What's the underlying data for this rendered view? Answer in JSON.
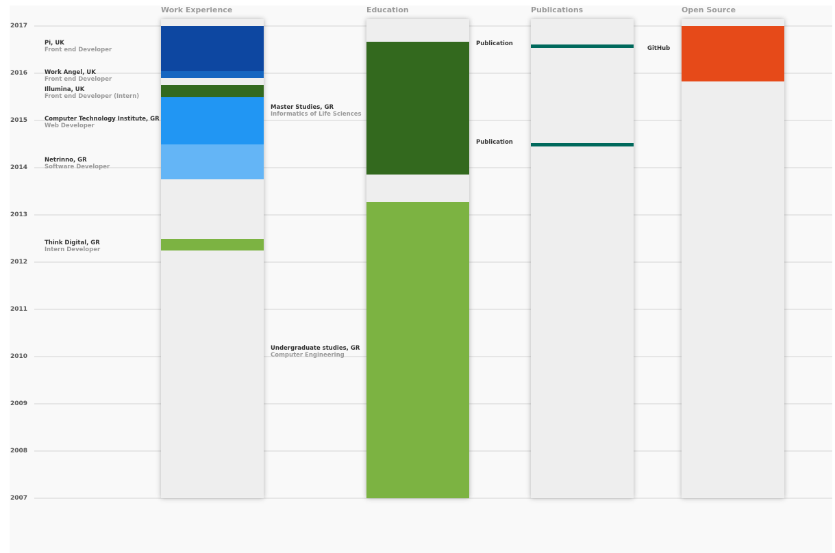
{
  "years": [
    "2017",
    "2016",
    "2015",
    "2014",
    "2013",
    "2012",
    "2011",
    "2010",
    "2009",
    "2008",
    "2007"
  ],
  "columns": {
    "work": "Work Experience",
    "education": "Education",
    "publications": "Publications",
    "opensource": "Open Source"
  },
  "work": [
    {
      "title": "Pi, UK",
      "role": "Front end Developer",
      "color": "#0d47a1"
    },
    {
      "title": "Work Angel, UK",
      "role": "Front end Developer",
      "color": "#1565c0"
    },
    {
      "title": "Illumina, UK",
      "role": "Front end Developer (Intern)",
      "color": "#33691e"
    },
    {
      "title": "Computer Technology Institute, GR",
      "role": "Web Developer",
      "color": "#2196f3"
    },
    {
      "title": "Netrinno, GR",
      "role": "Software Developer",
      "color": "#64b5f6"
    },
    {
      "title": "Think Digital, GR",
      "role": "Intern Developer",
      "color": "#7cb342"
    }
  ],
  "education": [
    {
      "title": "Master Studies, GR",
      "field": "Informatics of Life Sciences",
      "color": "#33691e"
    },
    {
      "title": "Undergraduate studies, GR",
      "field": "Computer Engineering",
      "color": "#7cb342"
    }
  ],
  "publications": [
    {
      "label": "Publication",
      "color": "#00695c"
    },
    {
      "label": "Publication",
      "color": "#00695c"
    }
  ],
  "opensource": [
    {
      "label": "GitHub",
      "color": "#e64a19"
    }
  ],
  "chart_data": {
    "type": "timeline",
    "y_axis": {
      "range": [
        2007,
        2017
      ],
      "ticks": [
        2017,
        2016,
        2015,
        2014,
        2013,
        2012,
        2011,
        2010,
        2009,
        2008,
        2007
      ]
    },
    "categories": [
      "Work Experience",
      "Education",
      "Publications",
      "Open Source"
    ],
    "series": [
      {
        "name": "Work Experience",
        "items": [
          {
            "label": "Pi, UK",
            "start": 2016.05,
            "end": 2017.0
          },
          {
            "label": "Work Angel, UK",
            "start": 2015.9,
            "end": 2016.05
          },
          {
            "label": "Illumina, UK",
            "start": 2015.5,
            "end": 2015.75
          },
          {
            "label": "Computer Technology Institute, GR",
            "start": 2014.5,
            "end": 2015.5
          },
          {
            "label": "Netrinno, GR",
            "start": 2013.75,
            "end": 2014.5
          },
          {
            "label": "Think Digital, GR",
            "start": 2012.25,
            "end": 2012.5
          }
        ]
      },
      {
        "name": "Education",
        "items": [
          {
            "label": "Master Studies, GR",
            "start": 2013.85,
            "end": 2016.67
          },
          {
            "label": "Undergraduate studies, GR",
            "start": 2007.0,
            "end": 2013.28
          }
        ]
      },
      {
        "name": "Publications",
        "items": [
          {
            "label": "Publication",
            "date": 2016.58
          },
          {
            "label": "Publication",
            "date": 2014.5
          }
        ]
      },
      {
        "name": "Open Source",
        "items": [
          {
            "label": "GitHub",
            "start": 2015.83,
            "end": 2017.0
          }
        ]
      }
    ]
  }
}
